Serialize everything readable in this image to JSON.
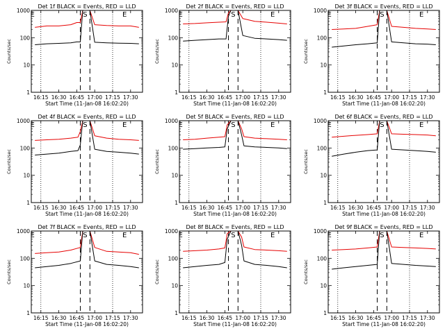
{
  "figure": {
    "colors": {
      "events": "#000000",
      "lld": "#e60000",
      "axis": "#000000",
      "background": "#ffffff"
    },
    "shared": {
      "ylabel": "Counts/sec",
      "xlabel": "Start Time (11-Jan-08 16:02:20)",
      "yscale": "log",
      "ylim": [
        1,
        1000
      ],
      "xlim": [
        "16:07",
        "17:40"
      ],
      "xticks": [
        "16:15",
        "16:30",
        "16:45",
        "17:00",
        "17:15",
        "17:30"
      ],
      "yticks": [
        {
          "value": 1,
          "label": "1"
        },
        {
          "value": 10,
          "label": "10"
        },
        {
          "value": 100,
          "label": "100"
        },
        {
          "value": 1000,
          "label": "1000"
        }
      ],
      "dotted_lines_at": [
        "16:15",
        "17:15"
      ],
      "dashed_lines_at": [
        "16:48",
        "16:56"
      ],
      "markers": [
        {
          "text": "E",
          "at": "16:08"
        },
        {
          "text": "S",
          "at": "16:52"
        },
        {
          "text": "E",
          "at": "17:25"
        }
      ]
    }
  },
  "chart_data": [
    {
      "type": "line",
      "title": "Det 1f BLACK = Events, RED = LLD",
      "series": [
        {
          "key": "lld",
          "x": [
            "16:10",
            "16:20",
            "16:30",
            "16:40",
            "16:45",
            "16:48",
            "16:50",
            "16:56",
            "17:00",
            "17:10",
            "17:20",
            "17:30",
            "17:37"
          ],
          "y": [
            240,
            270,
            270,
            300,
            360,
            360,
            1000,
            1000,
            300,
            280,
            270,
            270,
            240
          ]
        },
        {
          "key": "events",
          "x": [
            "16:10",
            "16:20",
            "16:30",
            "16:40",
            "16:45",
            "16:48",
            "16:50",
            "16:56",
            "17:00",
            "17:10",
            "17:20",
            "17:30",
            "17:37"
          ],
          "y": [
            55,
            60,
            62,
            65,
            70,
            70,
            1000,
            1000,
            68,
            65,
            63,
            62,
            60
          ]
        }
      ]
    },
    {
      "type": "line",
      "title": "Det 2f BLACK = Events, RED = LLD",
      "series": [
        {
          "key": "lld",
          "x": [
            "16:10",
            "16:20",
            "16:30",
            "16:40",
            "16:46",
            "16:48",
            "16:50",
            "16:56",
            "17:00",
            "17:10",
            "17:20",
            "17:30",
            "17:37"
          ],
          "y": [
            320,
            330,
            350,
            370,
            380,
            800,
            1000,
            1000,
            500,
            400,
            370,
            340,
            320
          ]
        },
        {
          "key": "events",
          "x": [
            "16:10",
            "16:20",
            "16:30",
            "16:40",
            "16:46",
            "16:48",
            "16:50",
            "16:56",
            "17:00",
            "17:10",
            "17:20",
            "17:30",
            "17:37"
          ],
          "y": [
            75,
            80,
            85,
            90,
            90,
            600,
            1000,
            1000,
            120,
            95,
            90,
            85,
            80
          ]
        }
      ]
    },
    {
      "type": "line",
      "title": "Det 3f BLACK = Events, RED = LLD",
      "series": [
        {
          "key": "lld",
          "x": [
            "16:10",
            "16:20",
            "16:30",
            "16:40",
            "16:48",
            "16:50",
            "16:56",
            "17:00",
            "17:10",
            "17:20",
            "17:30",
            "17:37"
          ],
          "y": [
            200,
            210,
            220,
            260,
            300,
            1000,
            1000,
            260,
            240,
            220,
            210,
            200
          ]
        },
        {
          "key": "events",
          "x": [
            "16:10",
            "16:20",
            "16:30",
            "16:40",
            "16:48",
            "16:50",
            "16:56",
            "17:00",
            "17:10",
            "17:20",
            "17:30",
            "17:37"
          ],
          "y": [
            45,
            50,
            55,
            60,
            65,
            1000,
            1000,
            70,
            65,
            60,
            58,
            55
          ]
        }
      ]
    },
    {
      "type": "line",
      "title": "Det 4f BLACK = Events, RED = LLD",
      "series": [
        {
          "key": "lld",
          "x": [
            "16:10",
            "16:20",
            "16:30",
            "16:40",
            "16:46",
            "16:48",
            "16:50",
            "16:56",
            "17:00",
            "17:10",
            "17:20",
            "17:30",
            "17:37"
          ],
          "y": [
            190,
            200,
            210,
            230,
            250,
            400,
            1000,
            1000,
            280,
            230,
            210,
            200,
            190
          ]
        },
        {
          "key": "events",
          "x": [
            "16:10",
            "16:20",
            "16:30",
            "16:40",
            "16:46",
            "16:48",
            "16:50",
            "16:56",
            "17:00",
            "17:10",
            "17:20",
            "17:30",
            "17:37"
          ],
          "y": [
            55,
            60,
            65,
            75,
            80,
            130,
            1000,
            1000,
            90,
            75,
            70,
            65,
            60
          ]
        }
      ]
    },
    {
      "type": "line",
      "title": "Det 5f BLACK = Events, RED = LLD",
      "series": [
        {
          "key": "lld",
          "x": [
            "16:10",
            "16:20",
            "16:30",
            "16:40",
            "16:45",
            "16:47",
            "16:50",
            "16:56",
            "16:59",
            "17:01",
            "17:10",
            "17:20",
            "17:30",
            "17:37"
          ],
          "y": [
            200,
            210,
            230,
            250,
            260,
            700,
            1000,
            1000,
            500,
            260,
            230,
            220,
            210,
            200
          ]
        },
        {
          "key": "events",
          "x": [
            "16:10",
            "16:20",
            "16:30",
            "16:40",
            "16:45",
            "16:47",
            "16:50",
            "16:56",
            "16:59",
            "17:01",
            "17:10",
            "17:20",
            "17:30",
            "17:37"
          ],
          "y": [
            90,
            95,
            100,
            105,
            110,
            500,
            1000,
            1000,
            300,
            120,
            110,
            105,
            100,
            95
          ]
        }
      ]
    },
    {
      "type": "line",
      "title": "Det 6f BLACK = Events, RED = LLD",
      "series": [
        {
          "key": "lld",
          "x": [
            "16:10",
            "16:20",
            "16:30",
            "16:40",
            "16:48",
            "16:50",
            "16:56",
            "17:00",
            "17:10",
            "17:20",
            "17:30",
            "17:37"
          ],
          "y": [
            250,
            270,
            290,
            310,
            330,
            1000,
            1000,
            330,
            320,
            310,
            300,
            280
          ]
        },
        {
          "key": "events",
          "x": [
            "16:10",
            "16:20",
            "16:30",
            "16:40",
            "16:48",
            "16:50",
            "16:56",
            "17:00",
            "17:10",
            "17:20",
            "17:30",
            "17:37"
          ],
          "y": [
            50,
            60,
            70,
            80,
            85,
            1000,
            1000,
            90,
            85,
            80,
            75,
            70
          ]
        }
      ]
    },
    {
      "type": "line",
      "title": "Det 7f BLACK = Events, RED = LLD",
      "series": [
        {
          "key": "lld",
          "x": [
            "16:10",
            "16:20",
            "16:30",
            "16:40",
            "16:48",
            "16:50",
            "16:56",
            "17:00",
            "17:10",
            "17:20",
            "17:30",
            "17:37"
          ],
          "y": [
            150,
            160,
            170,
            200,
            250,
            1000,
            1000,
            250,
            180,
            170,
            160,
            140
          ]
        },
        {
          "key": "events",
          "x": [
            "16:10",
            "16:20",
            "16:30",
            "16:40",
            "16:48",
            "16:50",
            "16:56",
            "17:00",
            "17:10",
            "17:20",
            "17:30",
            "17:37"
          ],
          "y": [
            45,
            50,
            55,
            65,
            80,
            1000,
            1000,
            80,
            60,
            55,
            50,
            45
          ]
        }
      ]
    },
    {
      "type": "line",
      "title": "Det 8f BLACK = Events, RED = LLD",
      "series": [
        {
          "key": "lld",
          "x": [
            "16:10",
            "16:20",
            "16:30",
            "16:40",
            "16:45",
            "16:47",
            "16:50",
            "16:56",
            "16:59",
            "17:01",
            "17:10",
            "17:20",
            "17:30",
            "17:37"
          ],
          "y": [
            180,
            190,
            200,
            220,
            240,
            800,
            1000,
            1000,
            600,
            260,
            210,
            200,
            190,
            180
          ]
        },
        {
          "key": "events",
          "x": [
            "16:10",
            "16:20",
            "16:30",
            "16:40",
            "16:45",
            "16:47",
            "16:50",
            "16:56",
            "16:59",
            "17:01",
            "17:10",
            "17:20",
            "17:30",
            "17:37"
          ],
          "y": [
            45,
            50,
            55,
            60,
            70,
            500,
            1000,
            1000,
            300,
            80,
            60,
            55,
            50,
            45
          ]
        }
      ]
    },
    {
      "type": "line",
      "title": "Det 9f BLACK = Events, RED = LLD",
      "series": [
        {
          "key": "lld",
          "x": [
            "16:10",
            "16:20",
            "16:30",
            "16:40",
            "16:48",
            "16:50",
            "16:56",
            "17:00",
            "17:10",
            "17:20",
            "17:30",
            "17:37"
          ],
          "y": [
            200,
            210,
            220,
            240,
            260,
            1000,
            1000,
            260,
            250,
            240,
            230,
            220
          ]
        },
        {
          "key": "events",
          "x": [
            "16:10",
            "16:20",
            "16:30",
            "16:40",
            "16:48",
            "16:50",
            "16:56",
            "17:00",
            "17:10",
            "17:20",
            "17:30",
            "17:37"
          ],
          "y": [
            40,
            45,
            50,
            55,
            60,
            1000,
            1000,
            65,
            60,
            55,
            52,
            50
          ]
        }
      ]
    }
  ]
}
